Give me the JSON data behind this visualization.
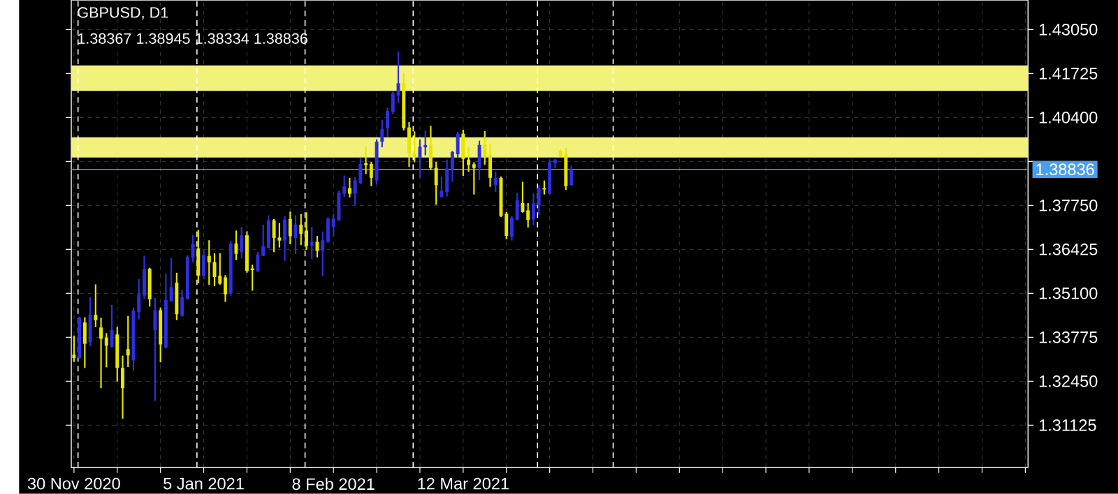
{
  "chart_data": {
    "type": "candlestick",
    "title": "GBPUSD, D1",
    "subtitle": "1.38367 1.38945 1.38334 1.38836",
    "categories": [
      "30 Nov 2020",
      null,
      null,
      null,
      null,
      null,
      null,
      null,
      null,
      null,
      null,
      null,
      null,
      null,
      null,
      null,
      null,
      null,
      null,
      null,
      null,
      null,
      null,
      null,
      "5 Jan 2021",
      null,
      null,
      null,
      null,
      null,
      null,
      null,
      null,
      null,
      null,
      null,
      null,
      null,
      null,
      null,
      null,
      null,
      null,
      null,
      null,
      null,
      null,
      null,
      "8 Feb 2021",
      null,
      null,
      null,
      null,
      null,
      null,
      null,
      null,
      null,
      null,
      null,
      null,
      null,
      null,
      null,
      null,
      null,
      null,
      null,
      null,
      null,
      null,
      null,
      "12 Mar 2021",
      null,
      null,
      null,
      null,
      null,
      null,
      null,
      null,
      null,
      null,
      null,
      null,
      null,
      null,
      null,
      null,
      null,
      null,
      null,
      null,
      null,
      null,
      null,
      null,
      null,
      null,
      null,
      null,
      null,
      null,
      null,
      null,
      null,
      null,
      null,
      null,
      null,
      null,
      null,
      null,
      null,
      null,
      null,
      null,
      null,
      null,
      null,
      null,
      null,
      null,
      null,
      null,
      null,
      null,
      null,
      null,
      null,
      null,
      null,
      null,
      null,
      null,
      null,
      null,
      null,
      null,
      null,
      null,
      null,
      null,
      null,
      null,
      null,
      null,
      null,
      null,
      null,
      null,
      null,
      null,
      null,
      null,
      null,
      null,
      null,
      null,
      null,
      null,
      null,
      null,
      null,
      null,
      null,
      null,
      null,
      null,
      null,
      null,
      null,
      null,
      null,
      null,
      null,
      null
    ],
    "ohlc": [
      [
        1.3325,
        1.3382,
        1.3303,
        1.3315
      ],
      [
        1.3315,
        1.344,
        1.3313,
        1.3437
      ],
      [
        1.3422,
        1.3438,
        1.3285,
        1.3358
      ],
      [
        1.3363,
        1.3498,
        1.3351,
        1.3445
      ],
      [
        1.3445,
        1.3537,
        1.3408,
        1.3429
      ],
      [
        1.3407,
        1.3436,
        1.3224,
        1.3373
      ],
      [
        1.3376,
        1.339,
        1.3287,
        1.3352
      ],
      [
        1.3348,
        1.3475,
        1.3346,
        1.3399
      ],
      [
        1.3386,
        1.3409,
        1.3244,
        1.3285
      ],
      [
        1.3285,
        1.3322,
        1.3132,
        1.3224
      ],
      [
        1.3342,
        1.3442,
        1.3288,
        1.3323
      ],
      [
        1.3308,
        1.3467,
        1.3277,
        1.3458
      ],
      [
        1.3454,
        1.3553,
        1.3432,
        1.3507
      ],
      [
        1.3503,
        1.3623,
        1.3493,
        1.3583
      ],
      [
        1.3584,
        1.3587,
        1.347,
        1.3492
      ],
      [
        1.3399,
        1.3496,
        1.3186,
        1.3459
      ],
      [
        1.3459,
        1.3467,
        1.3302,
        1.3356
      ],
      [
        1.3346,
        1.3569,
        1.3344,
        1.349
      ],
      [
        1.3487,
        1.3616,
        1.3485,
        1.3529
      ],
      [
        1.3542,
        1.3572,
        1.3429,
        1.3447
      ],
      [
        1.3442,
        1.352,
        1.344,
        1.3498
      ],
      [
        1.3493,
        1.3624,
        1.3491,
        1.362
      ],
      [
        1.3618,
        1.3685,
        1.3603,
        1.3658
      ],
      [
        1.3645,
        1.3701,
        1.354,
        1.3563
      ],
      [
        1.3563,
        1.3641,
        1.3553,
        1.3625
      ],
      [
        1.3623,
        1.367,
        1.3535,
        1.3603
      ],
      [
        1.3604,
        1.3631,
        1.3532,
        1.3559
      ],
      [
        1.3563,
        1.3631,
        1.3536,
        1.3539
      ],
      [
        1.3558,
        1.3565,
        1.3484,
        1.3507
      ],
      [
        1.351,
        1.3668,
        1.3503,
        1.366
      ],
      [
        1.366,
        1.3699,
        1.361,
        1.3629
      ],
      [
        1.3634,
        1.371,
        1.3615,
        1.3685
      ],
      [
        1.3685,
        1.3697,
        1.3572,
        1.3577
      ],
      [
        1.3585,
        1.3596,
        1.3518,
        1.358
      ],
      [
        1.3578,
        1.3635,
        1.3574,
        1.3627
      ],
      [
        1.3623,
        1.3717,
        1.3622,
        1.3652
      ],
      [
        1.3646,
        1.3745,
        1.3646,
        1.3729
      ],
      [
        1.373,
        1.3734,
        1.3634,
        1.3677
      ],
      [
        1.3678,
        1.3722,
        1.3648,
        1.3669
      ],
      [
        1.3669,
        1.3743,
        1.3608,
        1.3732
      ],
      [
        1.3734,
        1.3756,
        1.3658,
        1.3682
      ],
      [
        1.3677,
        1.3745,
        1.3629,
        1.3717
      ],
      [
        1.3717,
        1.3749,
        1.3656,
        1.3689
      ],
      [
        1.3699,
        1.3754,
        1.3641,
        1.3653
      ],
      [
        1.3654,
        1.371,
        1.3614,
        1.3665
      ],
      [
        1.3665,
        1.3683,
        1.3618,
        1.3638
      ],
      [
        1.3638,
        1.3696,
        1.3563,
        1.367
      ],
      [
        1.3665,
        1.3739,
        1.3662,
        1.3735
      ],
      [
        1.371,
        1.375,
        1.3681,
        1.3735
      ],
      [
        1.3729,
        1.3819,
        1.3729,
        1.3813
      ],
      [
        1.381,
        1.3865,
        1.3801,
        1.3832
      ],
      [
        1.3827,
        1.3858,
        1.3799,
        1.381
      ],
      [
        1.381,
        1.386,
        1.3775,
        1.385
      ],
      [
        1.3843,
        1.3919,
        1.3839,
        1.39
      ],
      [
        1.3902,
        1.3952,
        1.3869,
        1.3896
      ],
      [
        1.39,
        1.3906,
        1.3833,
        1.3858
      ],
      [
        1.385,
        1.3974,
        1.3838,
        1.3967
      ],
      [
        1.3967,
        1.4033,
        1.395,
        1.4005
      ],
      [
        1.4007,
        1.407,
        1.3981,
        1.406
      ],
      [
        1.4057,
        1.4119,
        1.405,
        1.4113
      ],
      [
        1.4106,
        1.4239,
        1.4084,
        1.4143
      ],
      [
        1.4143,
        1.4174,
        1.4001,
        1.4008
      ],
      [
        1.401,
        1.4026,
        1.3891,
        1.3933
      ],
      [
        1.3929,
        1.3998,
        1.3905,
        1.392
      ],
      [
        1.3919,
        1.3974,
        1.3858,
        1.3952
      ],
      [
        1.395,
        1.4001,
        1.3926,
        1.3957
      ],
      [
        1.3957,
        1.4015,
        1.3881,
        1.3888
      ],
      [
        1.3888,
        1.3906,
        1.3777,
        1.3836
      ],
      [
        1.38,
        1.3862,
        1.38,
        1.3819
      ],
      [
        1.3815,
        1.3913,
        1.3802,
        1.3886
      ],
      [
        1.3884,
        1.3939,
        1.3846,
        1.3936
      ],
      [
        1.3929,
        1.3996,
        1.3917,
        1.3991
      ],
      [
        1.3991,
        1.4003,
        1.3864,
        1.3915
      ],
      [
        1.3913,
        1.395,
        1.3876,
        1.3897
      ],
      [
        1.3899,
        1.3905,
        1.3808,
        1.3888
      ],
      [
        1.3888,
        1.397,
        1.3851,
        1.3957
      ],
      [
        1.3959,
        1.3999,
        1.3898,
        1.392
      ],
      [
        1.3926,
        1.396,
        1.3831,
        1.3858
      ],
      [
        1.3836,
        1.3877,
        1.3815,
        1.3857
      ],
      [
        1.3858,
        1.3862,
        1.374,
        1.3743
      ],
      [
        1.375,
        1.3755,
        1.3673,
        1.3683
      ],
      [
        1.3681,
        1.3743,
        1.3669,
        1.3738
      ],
      [
        1.3731,
        1.3812,
        1.3731,
        1.3791
      ],
      [
        1.3782,
        1.3846,
        1.3753,
        1.3755
      ],
      [
        1.376,
        1.3782,
        1.3708,
        1.3731
      ],
      [
        1.3733,
        1.3811,
        1.3715,
        1.3781
      ],
      [
        1.3775,
        1.3836,
        1.3746,
        1.3828
      ],
      [
        1.3827,
        1.385,
        1.3808,
        1.3823
      ],
      [
        1.381,
        1.3912,
        1.381,
        1.3905
      ],
      [
        1.3902,
        1.3915,
        1.3888,
        1.3913
      ],
      [
        1.3939,
        1.3943,
        1.392,
        1.3924
      ],
      [
        1.3929,
        1.3948,
        1.3822,
        1.3833
      ],
      [
        1.38367,
        1.38945,
        1.38334,
        1.38836
      ],
      null,
      null,
      null,
      null,
      null,
      null,
      null,
      null,
      null,
      null,
      null,
      null,
      null,
      null,
      null,
      null,
      null,
      null,
      null,
      null,
      null,
      null,
      null,
      null,
      null,
      null,
      null,
      null,
      null,
      null,
      null,
      null,
      null,
      null,
      null,
      null,
      null,
      null,
      null,
      null,
      null,
      null,
      null,
      null,
      null,
      null,
      null,
      null,
      null,
      null,
      null,
      null,
      null,
      null,
      null,
      null,
      null,
      null,
      null,
      null,
      null,
      null,
      null,
      null,
      null,
      null,
      null,
      null,
      null,
      null,
      null,
      null,
      null,
      null,
      null,
      null,
      null,
      null,
      null,
      null,
      null,
      null,
      null,
      null
    ],
    "colors": [
      "#e6e600",
      "#2e2ee0",
      "#e6e600",
      "#2e2ee0",
      "#e6e600",
      "#e6e600",
      "#e6e600",
      "#2e2ee0",
      "#e6e600",
      "#e6e600",
      "#e6e600",
      "#2e2ee0",
      "#2e2ee0",
      "#2e2ee0",
      "#e6e600",
      "#2e2ee0",
      "#e6e600",
      "#2e2ee0",
      "#2e2ee0",
      "#e6e600",
      "#2e2ee0",
      "#2e2ee0",
      "#2e2ee0",
      "#e6e600",
      "#2e2ee0",
      "#e6e600",
      "#e6e600",
      "#e6e600",
      "#e6e600",
      "#2e2ee0",
      "#e6e600",
      "#2e2ee0",
      "#e6e600",
      "#e6e600",
      "#2e2ee0",
      "#2e2ee0",
      "#2e2ee0",
      "#e6e600",
      "#e6e600",
      "#2e2ee0",
      "#e6e600",
      "#2e2ee0",
      "#e6e600",
      "#e6e600",
      "#2e2ee0",
      "#e6e600",
      "#2e2ee0",
      "#2e2ee0",
      "#2e2ee0",
      "#2e2ee0",
      "#2e2ee0",
      "#e6e600",
      "#2e2ee0",
      "#2e2ee0",
      "#e6e600",
      "#e6e600",
      "#2e2ee0",
      "#2e2ee0",
      "#2e2ee0",
      "#2e2ee0",
      "#2e2ee0",
      "#e6e600",
      "#e6e600",
      "#e6e600",
      "#2e2ee0",
      "#2e2ee0",
      "#e6e600",
      "#e6e600",
      "#2e2ee0",
      "#2e2ee0",
      "#2e2ee0",
      "#2e2ee0",
      "#e6e600",
      "#e6e600",
      "#e6e600",
      "#2e2ee0",
      "#e6e600",
      "#e6e600",
      "#2e2ee0",
      "#e6e600",
      "#e6e600",
      "#2e2ee0",
      "#2e2ee0",
      "#e6e600",
      "#e6e600",
      "#2e2ee0",
      "#2e2ee0",
      "#e6e600",
      "#2e2ee0",
      "#2e2ee0",
      "#e6e600",
      "#e6e600",
      "#2e2ee0",
      null,
      null,
      null,
      null,
      null,
      null,
      null,
      null,
      null,
      null,
      null,
      null,
      null,
      null,
      null,
      null,
      null,
      null,
      null,
      null,
      null,
      null,
      null,
      null,
      null,
      null,
      null,
      null,
      null,
      null,
      null,
      null,
      null,
      null,
      null,
      null,
      null,
      null,
      null,
      null,
      null,
      null,
      null,
      null,
      null,
      null,
      null,
      null,
      null,
      null,
      null,
      null,
      null,
      null,
      null,
      null,
      null,
      null,
      null,
      null,
      null,
      null,
      null,
      null,
      null,
      null,
      null,
      null,
      null,
      null,
      null,
      null,
      null,
      null,
      null,
      null,
      null,
      null,
      null,
      null,
      null,
      null,
      null,
      null
    ],
    "ylim": [
      1.2985,
      1.4394
    ],
    "yticks": [
      {
        "value": 1.31125,
        "label": "1.31125"
      },
      {
        "value": 1.3245,
        "label": "1.32450"
      },
      {
        "value": 1.33775,
        "label": "1.33775"
      },
      {
        "value": 1.351,
        "label": "1.35100"
      },
      {
        "value": 1.36425,
        "label": "1.36425"
      },
      {
        "value": 1.3775,
        "label": "1.37750"
      },
      {
        "value": 1.39075,
        "label": null
      },
      {
        "value": 1.404,
        "label": "1.40400"
      },
      {
        "value": 1.41725,
        "label": "1.41725"
      },
      {
        "value": 1.4305,
        "label": "1.43050"
      }
    ],
    "grid": true,
    "bands": [
      {
        "axis": "y",
        "from": 1.412,
        "to": 1.4197,
        "color": "#f2f27a"
      },
      {
        "axis": "y",
        "from": 1.3919,
        "to": 1.398,
        "color": "#f2f27a"
      }
    ],
    "ref_lines": [
      {
        "axis": "y",
        "value": 1.38836,
        "label": "1.38836",
        "color": "#4a9ef0"
      }
    ]
  }
}
